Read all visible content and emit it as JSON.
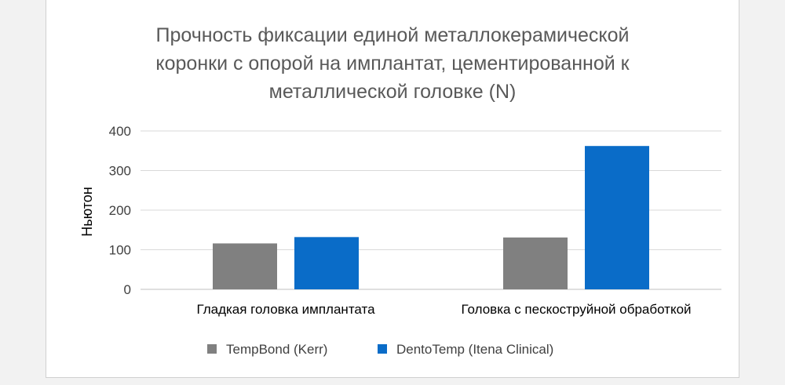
{
  "chart_data": {
    "type": "bar",
    "title_lines": [
      "Прочность фиксации единой металлокерамической",
      "коронки с опорой на имплантат, цементированной к",
      "металлической головке (N)"
    ],
    "ylabel": "Ньютон",
    "xlabel": "",
    "ylim": [
      0,
      400
    ],
    "yticks": [
      0,
      100,
      200,
      300,
      400
    ],
    "grid": true,
    "legend_position": "bottom",
    "categories": [
      "Гладкая головка имплантата",
      "Головка с пескоструйной обработкой"
    ],
    "series": [
      {
        "name": "TempBond (Kerr)",
        "values": [
          116,
          131
        ],
        "color": "#808080"
      },
      {
        "name": "DentoTemp (Itena Clinical)",
        "values": [
          132,
          362
        ],
        "color": "#0a6cc8"
      }
    ],
    "gridline_color": "#d9d9d9",
    "axis_color": "#bfbfbf"
  }
}
